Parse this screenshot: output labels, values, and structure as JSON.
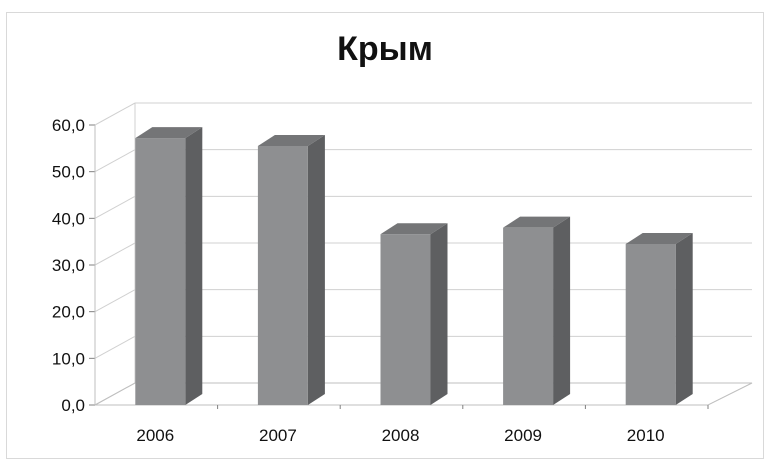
{
  "chart_data": {
    "type": "bar",
    "title": "Крым",
    "xlabel": "",
    "ylabel": "",
    "categories": [
      "2006",
      "2007",
      "2008",
      "2009",
      "2010"
    ],
    "values": [
      57.2,
      55.5,
      36.6,
      38.0,
      34.5
    ],
    "ylim": [
      0,
      60
    ],
    "yticks": [
      "0,0",
      "10,0",
      "20,0",
      "30,0",
      "40,0",
      "50,0",
      "60,0"
    ],
    "grid": true,
    "legend": "none",
    "colors": {
      "bar_front": "#8e8f91",
      "bar_side": "#5e5f61",
      "bar_top": "#747577",
      "grid": "#d0d0d0",
      "axis": "#bfbfbf"
    }
  }
}
